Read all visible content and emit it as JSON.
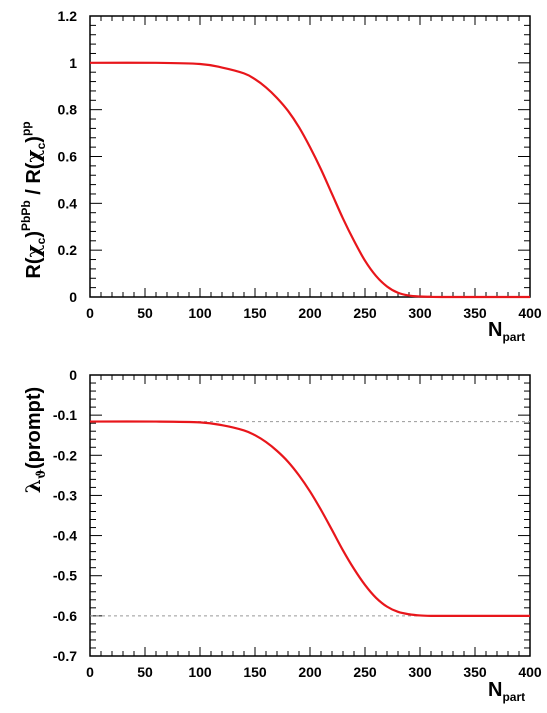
{
  "chart_data": [
    {
      "type": "line",
      "title": "",
      "xlabel": {
        "main": "N",
        "sub": "part"
      },
      "ylabel": "R(χc)^PbPb / R(χc)^pp",
      "ylabel_parts": {
        "r1": "R(",
        "chi1": "χ",
        "c1": "c",
        "close1": ")",
        "sup1": "PbPb",
        "slash": " / R(",
        "chi2": "χ",
        "c2": "c",
        "close2": ")",
        "sup2": "pp"
      },
      "xlim": [
        0,
        400
      ],
      "ylim": [
        0,
        1.2
      ],
      "x_ticks": [
        0,
        50,
        100,
        150,
        200,
        250,
        300,
        350,
        400
      ],
      "x_tick_labels": [
        "0",
        "50",
        "100",
        "150",
        "200",
        "250",
        "300",
        "350",
        "400"
      ],
      "y_ticks": [
        0,
        0.2,
        0.4,
        0.6,
        0.8,
        1,
        1.2
      ],
      "y_tick_labels": [
        "0",
        "0.2",
        "0.4",
        "0.6",
        "0.8",
        "1",
        "1.2"
      ],
      "grid": false,
      "series": [
        {
          "color": "#e8161b",
          "x": [
            0,
            60,
            100,
            120,
            140,
            150,
            160,
            170,
            180,
            190,
            200,
            210,
            220,
            230,
            240,
            250,
            260,
            270,
            280,
            290,
            300,
            310,
            320,
            400
          ],
          "y": [
            1.0,
            1.0,
            0.995,
            0.98,
            0.955,
            0.93,
            0.895,
            0.85,
            0.795,
            0.725,
            0.64,
            0.545,
            0.44,
            0.335,
            0.24,
            0.155,
            0.09,
            0.045,
            0.018,
            0.006,
            0.002,
            0.001,
            0.0,
            0.0
          ]
        }
      ],
      "reference_lines": []
    },
    {
      "type": "line",
      "title": "",
      "xlabel": {
        "main": "N",
        "sub": "part"
      },
      "ylabel": "λϑ(prompt)",
      "ylabel_parts": {
        "lambda": "λ",
        "theta": "ϑ",
        "rest": "(prompt)"
      },
      "xlim": [
        0,
        400
      ],
      "ylim": [
        -0.7,
        0
      ],
      "x_ticks": [
        0,
        50,
        100,
        150,
        200,
        250,
        300,
        350,
        400
      ],
      "x_tick_labels": [
        "0",
        "50",
        "100",
        "150",
        "200",
        "250",
        "300",
        "350",
        "400"
      ],
      "y_ticks": [
        0,
        -0.1,
        -0.2,
        -0.3,
        -0.4,
        -0.5,
        -0.6,
        -0.7
      ],
      "y_tick_labels": [
        "0",
        "-0.1",
        "-0.2",
        "-0.3",
        "-0.4",
        "-0.5",
        "-0.6",
        "-0.7"
      ],
      "grid": false,
      "series": [
        {
          "color": "#e8161b",
          "x": [
            0,
            60,
            100,
            120,
            140,
            150,
            160,
            170,
            180,
            190,
            200,
            210,
            220,
            230,
            240,
            250,
            260,
            270,
            280,
            290,
            300,
            310,
            320,
            400
          ],
          "y": [
            -0.116,
            -0.116,
            -0.118,
            -0.125,
            -0.138,
            -0.15,
            -0.167,
            -0.189,
            -0.216,
            -0.25,
            -0.29,
            -0.336,
            -0.386,
            -0.437,
            -0.483,
            -0.523,
            -0.555,
            -0.577,
            -0.59,
            -0.596,
            -0.599,
            -0.6,
            -0.6,
            -0.6
          ]
        }
      ],
      "reference_lines": [
        {
          "y": -0.116,
          "style": "dashed",
          "color": "#999999"
        },
        {
          "y": -0.6,
          "style": "dashed",
          "color": "#999999"
        }
      ]
    }
  ]
}
